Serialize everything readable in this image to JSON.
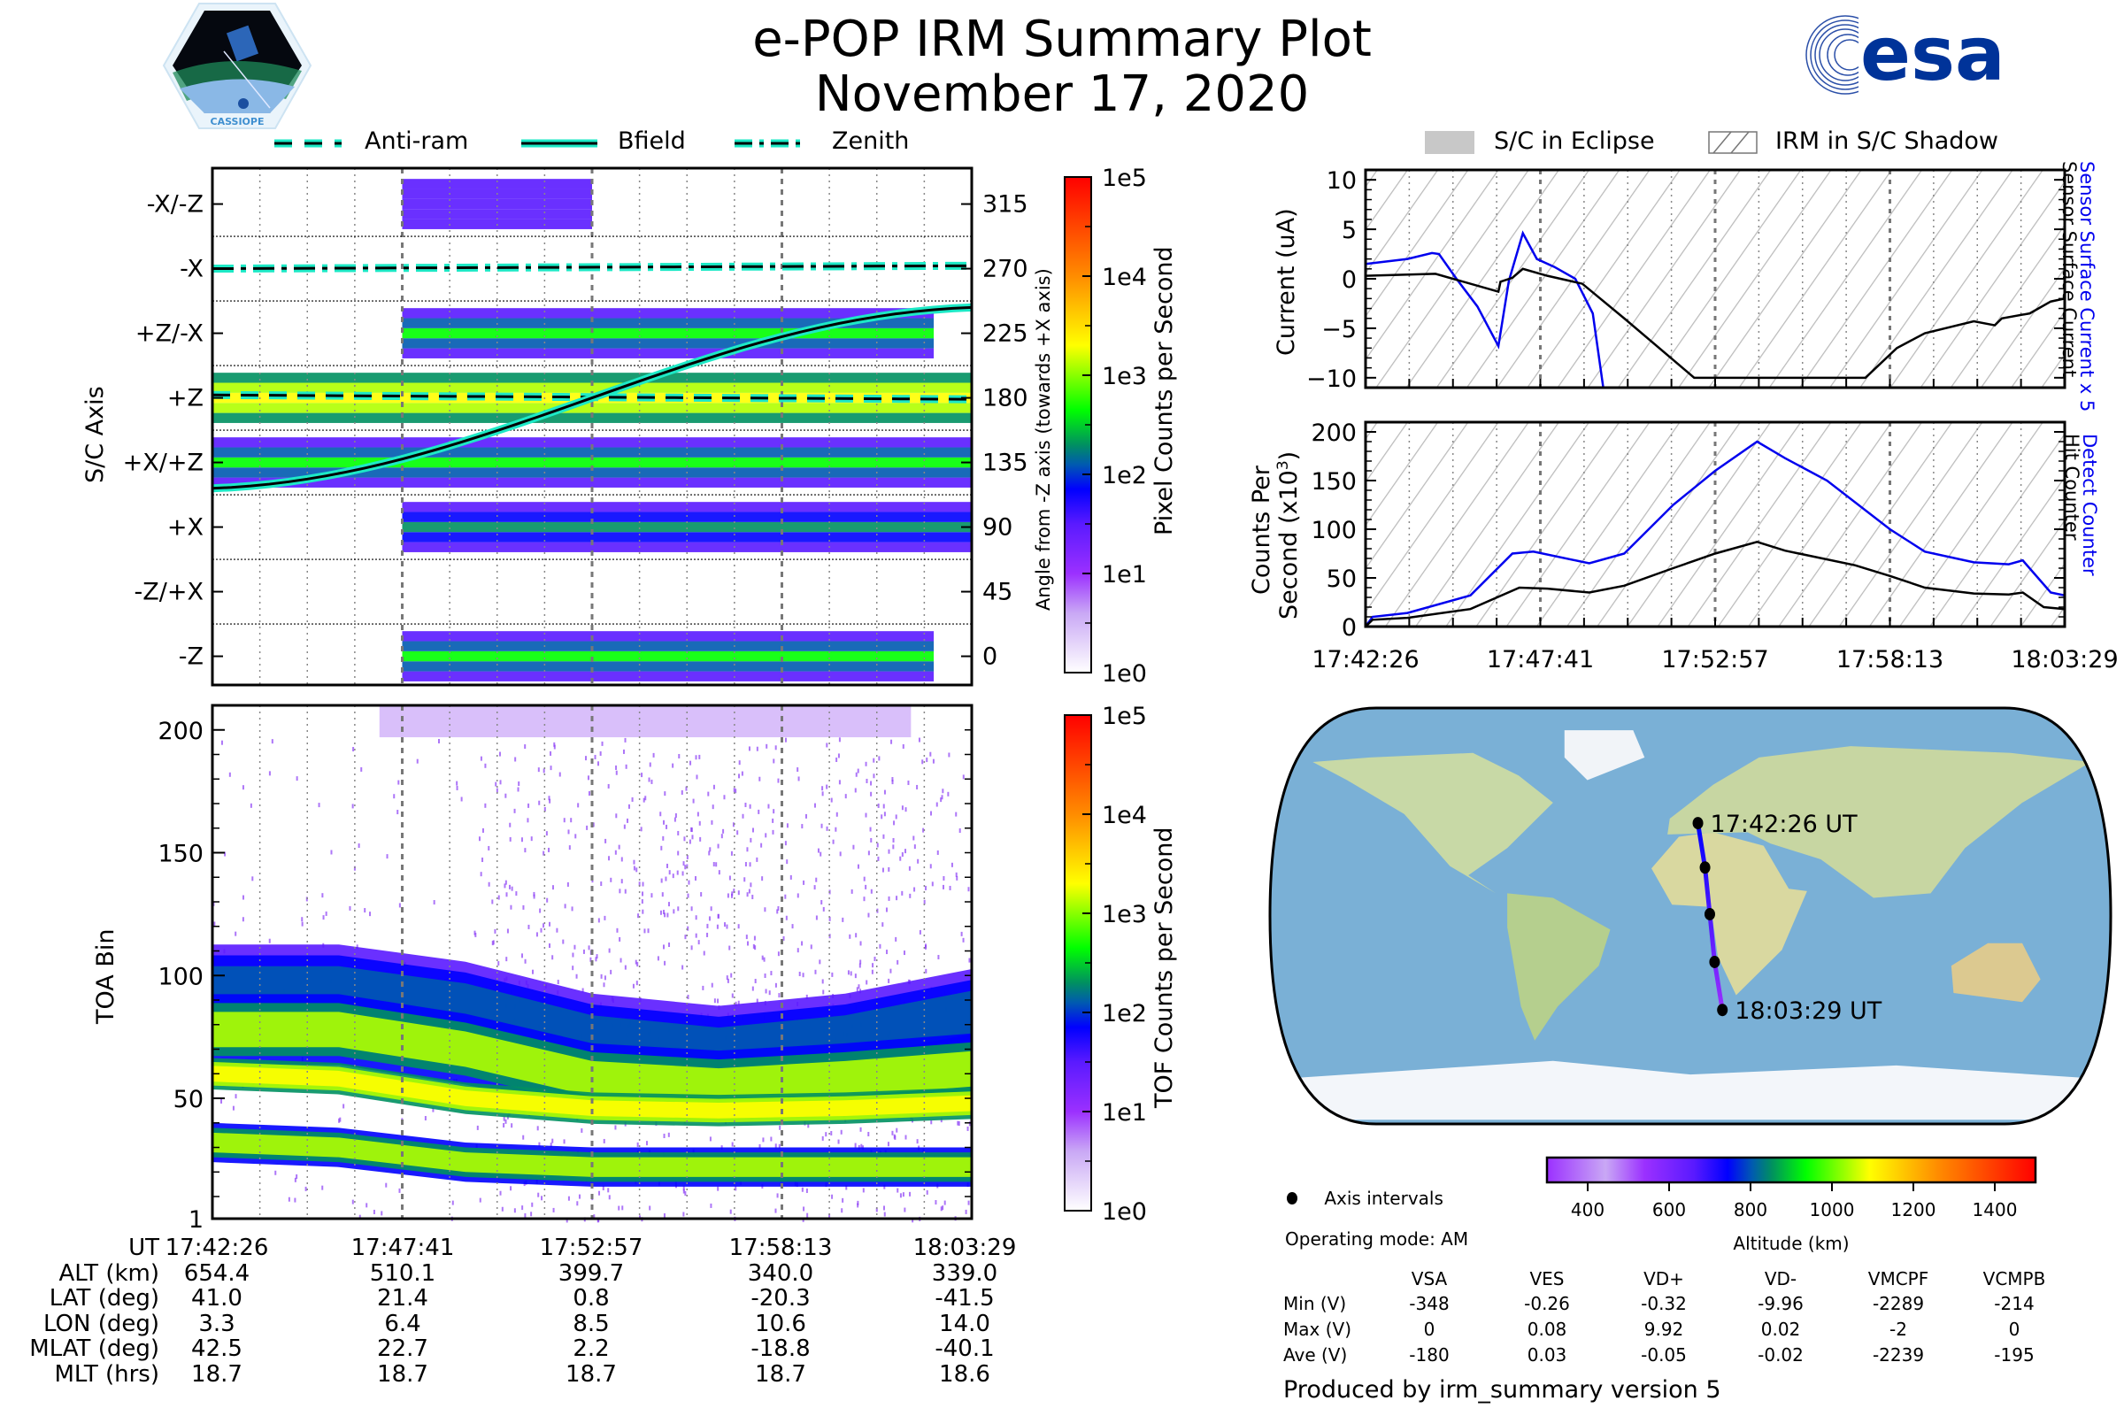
{
  "header": {
    "title_line1": "e-POP IRM Summary Plot",
    "title_line2": "November 17, 2020",
    "left_logo_text": "CASSIOPE",
    "right_logo_text": "esa"
  },
  "line_legend": [
    {
      "label": "Anti-ram",
      "style": "dashed"
    },
    {
      "label": "Bfield",
      "style": "solid"
    },
    {
      "label": "Zenith",
      "style": "dashdot"
    }
  ],
  "shade_legend": [
    {
      "label": "S/C in Eclipse",
      "style": "filled-gray"
    },
    {
      "label": "IRM in S/C Shadow",
      "style": "hatched"
    }
  ],
  "colors": {
    "legend_line": "#1de9c6",
    "detect_blue": "#0000ee",
    "hatch_gray": "#bbbbbb",
    "esa_blue": "#003399"
  },
  "time_ticks": [
    "17:42:26",
    "17:47:41",
    "17:52:57",
    "17:58:13",
    "18:03:29"
  ],
  "ephemeris": {
    "row_labels": [
      "UT",
      "ALT (km)",
      "LAT (deg)",
      "LON (deg)",
      "MLAT (deg)",
      "MLT (hrs)"
    ],
    "columns": [
      [
        "17:42:26",
        "654.4",
        "41.0",
        "3.3",
        "42.5",
        "18.7"
      ],
      [
        "17:47:41",
        "510.1",
        "21.4",
        "6.4",
        "22.7",
        "18.7"
      ],
      [
        "17:52:57",
        "399.7",
        "0.8",
        "8.5",
        "2.2",
        "18.7"
      ],
      [
        "17:58:13",
        "340.0",
        "-20.3",
        "10.6",
        "-18.8",
        "18.7"
      ],
      [
        "18:03:29",
        "339.0",
        "-41.5",
        "14.0",
        "-40.1",
        "18.6"
      ]
    ]
  },
  "chart_data": [
    {
      "id": "sc-axis-spectrogram",
      "type": "heatmap",
      "ylabel": "S/C Axis",
      "y2label": "Angle from -Z axis (towards +X axis)",
      "y_tick_labels_left": [
        "-X/-Z",
        "-X",
        "+Z/-X",
        "+Z",
        "+X/+Z",
        "+X",
        "-Z/+X",
        "-Z"
      ],
      "y_tick_labels_right": [
        "315",
        "270",
        "225",
        "180",
        "135",
        "90",
        "45",
        "0"
      ],
      "ylim": [
        -20,
        340
      ],
      "colorbar": {
        "label": "Pixel Counts per Second",
        "scale": "log",
        "ticks": [
          "1e0",
          "1e1",
          "1e2",
          "1e3",
          "1e4",
          "1e5"
        ]
      },
      "overlay_lines": [
        {
          "name": "Zenith",
          "style": "dashdot",
          "y_start": 270,
          "y_end": 272
        },
        {
          "name": "Anti-ram",
          "style": "dashed",
          "y_start": 182,
          "y_end": 179
        },
        {
          "name": "Bfield",
          "style": "solid",
          "y_start": 117,
          "y_end": 243
        }
      ],
      "bands": [
        {
          "angle_center": 315,
          "t_start": 0.25,
          "t_end": 0.5,
          "level": 1.5
        },
        {
          "angle_center": 225,
          "t_start": 0.25,
          "t_end": 0.95,
          "level": 2.4
        },
        {
          "angle_center": 180,
          "t_start": 0.0,
          "t_end": 1.0,
          "level": 3.3
        },
        {
          "angle_center": 135,
          "t_start": 0.0,
          "t_end": 1.0,
          "level": 2.4
        },
        {
          "angle_center": 90,
          "t_start": 0.25,
          "t_end": 1.0,
          "level": 2.2
        },
        {
          "angle_center": 0,
          "t_start": 0.25,
          "t_end": 0.95,
          "level": 2.5
        }
      ]
    },
    {
      "id": "toa-spectrogram",
      "type": "heatmap",
      "ylabel": "TOA Bin",
      "y_tick_labels": [
        "1",
        "50",
        "100",
        "150",
        "200"
      ],
      "y_ticks": [
        1,
        50,
        100,
        150,
        200
      ],
      "ylim": [
        1,
        210
      ],
      "colorbar": {
        "label": "TOF Counts per Second",
        "scale": "log",
        "ticks": [
          "1e0",
          "1e1",
          "1e2",
          "1e3",
          "1e4",
          "1e5"
        ]
      }
    },
    {
      "id": "current-plot",
      "type": "line",
      "ylabel": "Current (uA)",
      "right_labels": [
        "Sensor Surface Current x 5",
        "Sensor Surface Current"
      ],
      "ylim": [
        -11,
        11
      ],
      "y_tick_labels": [
        "−10",
        "−5",
        "0",
        "5",
        "10"
      ],
      "y_ticks": [
        -10,
        -5,
        0,
        5,
        10
      ],
      "x_fraction_range": [
        0,
        1
      ],
      "series": [
        {
          "name": "Sensor Surface Current x 5",
          "color": "#0000ee",
          "x": [
            0.0,
            0.06,
            0.095,
            0.105,
            0.13,
            0.16,
            0.19,
            0.205,
            0.225,
            0.245,
            0.27,
            0.3,
            0.325,
            0.34
          ],
          "y": [
            1.5,
            2.0,
            2.6,
            2.5,
            0.0,
            -2.8,
            -6.8,
            -0.2,
            4.6,
            2.0,
            1.2,
            0.0,
            -3.5,
            -11
          ]
        },
        {
          "name": "Sensor Surface Current",
          "color": "#000000",
          "x": [
            0.0,
            0.1,
            0.19,
            0.193,
            0.21,
            0.225,
            0.26,
            0.31,
            0.37,
            0.47,
            0.715,
            0.76,
            0.8,
            0.87,
            0.9,
            0.91,
            0.95,
            0.98,
            1.0
          ],
          "y": [
            0.3,
            0.5,
            -1.3,
            -0.3,
            0.1,
            1.0,
            0.3,
            -0.5,
            -4.0,
            -10.0,
            -10.0,
            -7.0,
            -5.5,
            -4.3,
            -4.7,
            -4.0,
            -3.5,
            -2.3,
            -2.0
          ]
        }
      ]
    },
    {
      "id": "counts-plot",
      "type": "line",
      "ylabel": "Counts Per Second (x10^3)",
      "right_labels": [
        "Detect Counter",
        "Hit Counter"
      ],
      "ylim": [
        0,
        210
      ],
      "y_tick_labels": [
        "0",
        "50",
        "100",
        "150",
        "200"
      ],
      "y_ticks": [
        0,
        50,
        100,
        150,
        200
      ],
      "x_tick_labels": [
        "17:42:26",
        "17:47:41",
        "17:52:57",
        "17:58:13",
        "18:03:29"
      ],
      "series": [
        {
          "name": "Detect Counter",
          "color": "#0000ee",
          "x": [
            0.0,
            0.01,
            0.06,
            0.15,
            0.21,
            0.24,
            0.32,
            0.37,
            0.44,
            0.5,
            0.56,
            0.6,
            0.66,
            0.75,
            0.8,
            0.87,
            0.92,
            0.94,
            0.98,
            1.0
          ],
          "y": [
            0,
            10,
            14,
            32,
            75,
            77,
            65,
            75,
            125,
            160,
            190,
            173,
            150,
            100,
            77,
            66,
            64,
            68,
            35,
            32
          ]
        },
        {
          "name": "Hit Counter",
          "color": "#000000",
          "x": [
            0.0,
            0.01,
            0.06,
            0.15,
            0.22,
            0.26,
            0.32,
            0.37,
            0.44,
            0.5,
            0.56,
            0.6,
            0.7,
            0.75,
            0.8,
            0.87,
            0.92,
            0.94,
            0.97,
            1.0
          ],
          "y": [
            0,
            7,
            9,
            18,
            40,
            39,
            35,
            42,
            60,
            75,
            87,
            78,
            63,
            52,
            40,
            34,
            33,
            35,
            20,
            18
          ]
        }
      ]
    },
    {
      "id": "ground-track-map",
      "type": "scatter",
      "points": [
        {
          "label": "17:42:26 UT",
          "lat": 41.0,
          "lon": 3.3
        },
        {
          "label": "",
          "lat": 21.4,
          "lon": 6.4
        },
        {
          "label": "",
          "lat": 0.8,
          "lon": 8.5
        },
        {
          "label": "",
          "lat": -20.3,
          "lon": 10.6
        },
        {
          "label": "18:03:29 UT",
          "lat": -41.5,
          "lon": 14.0
        }
      ],
      "legend": "Axis intervals",
      "colorbar": {
        "label": "Altitude (km)",
        "ticks": [
          "400",
          "600",
          "800",
          "1000",
          "1200",
          "1400"
        ],
        "range": [
          300,
          1500
        ]
      }
    }
  ],
  "footer": {
    "axis_intervals_label": "Axis intervals",
    "operating_mode": "Operating mode: AM",
    "stats_headers": [
      "VSA",
      "VES",
      "VD+",
      "VD-",
      "VMCPF",
      "VCMPB"
    ],
    "stats_rows": [
      {
        "label": "Min (V)",
        "values": [
          "-348",
          "-0.26",
          "-0.32",
          "-9.96",
          "-2289",
          "-214"
        ]
      },
      {
        "label": "Max (V)",
        "values": [
          "0",
          "0.08",
          "9.92",
          "0.02",
          "-2",
          "0"
        ]
      },
      {
        "label": "Ave (V)",
        "values": [
          "-180",
          "0.03",
          "-0.05",
          "-0.02",
          "-2239",
          "-195"
        ]
      }
    ],
    "produced_by": "Produced by irm_summary version 5"
  }
}
